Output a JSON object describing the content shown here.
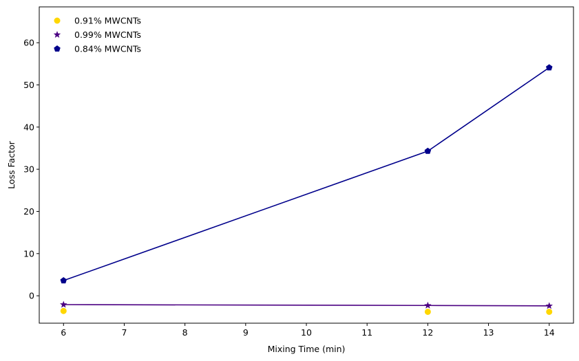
{
  "chart_data": {
    "type": "scatter",
    "xlabel": "Mixing Time (min)",
    "ylabel": "Loss Factor",
    "xlim": [
      5.6,
      14.4
    ],
    "ylim": [
      -6.5,
      68.5
    ],
    "x_ticks": [
      "6",
      "7",
      "8",
      "9",
      "10",
      "11",
      "12",
      "13",
      "14"
    ],
    "y_ticks": [
      "0",
      "10",
      "20",
      "30",
      "40",
      "50",
      "60"
    ],
    "grid": false,
    "legend_position": "top-left",
    "series": [
      {
        "name": "0.91% MWCNTs",
        "marker": "circle",
        "line": false,
        "color": "#ffd700",
        "x": [
          6,
          12,
          14
        ],
        "y": [
          -3.6,
          -3.8,
          -3.8
        ]
      },
      {
        "name": "0.99% MWCNTs",
        "marker": "star",
        "line": true,
        "color": "#4b0082",
        "x": [
          6,
          12,
          14
        ],
        "y": [
          -2.1,
          -2.3,
          -2.4
        ]
      },
      {
        "name": "0.84% MWCNTs",
        "marker": "pentagon",
        "line": true,
        "color": "#00008b",
        "x": [
          6,
          12,
          14
        ],
        "y": [
          3.6,
          34.3,
          54.1
        ]
      }
    ]
  }
}
